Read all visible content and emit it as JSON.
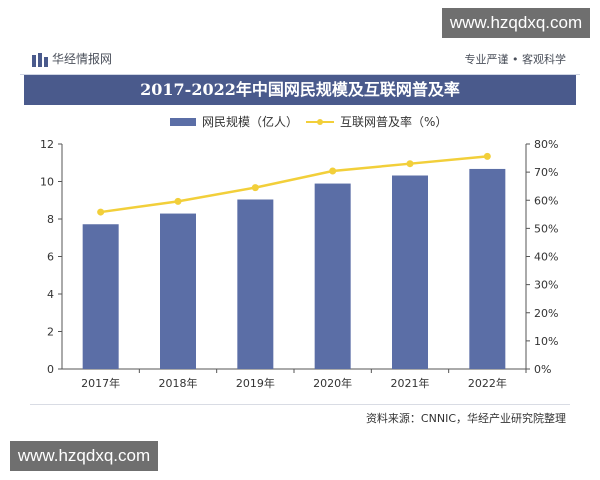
{
  "watermark": {
    "site": "www.hzqdxq.com"
  },
  "header": {
    "brand": "华经情报网",
    "slogan": "专业严谨 • 客观科学"
  },
  "chart_data": {
    "type": "bar",
    "title": "2017-2022年中国网民规模及互联网普及率",
    "categories": [
      "2017年",
      "2018年",
      "2019年",
      "2020年",
      "2021年",
      "2022年"
    ],
    "series": [
      {
        "name": "网民规模（亿人）",
        "type": "bar",
        "axis": "left",
        "color": "#5b6ea6",
        "values": [
          7.72,
          8.29,
          9.04,
          9.89,
          10.32,
          10.67
        ]
      },
      {
        "name": "互联网普及率（%）",
        "type": "line",
        "axis": "right",
        "color": "#f2cf3a",
        "values": [
          55.8,
          59.6,
          64.5,
          70.4,
          73.0,
          75.6
        ]
      }
    ],
    "yleft": {
      "ylim": [
        0,
        12
      ],
      "ticks": [
        "0",
        "2",
        "4",
        "6",
        "8",
        "10",
        "12"
      ]
    },
    "yright": {
      "ylim": [
        0,
        80
      ],
      "ticks": [
        "0%",
        "10%",
        "20%",
        "30%",
        "40%",
        "50%",
        "60%",
        "70%",
        "80%"
      ]
    },
    "legend": "top-center",
    "grid": false
  },
  "footer": {
    "source": "资料来源：CNNIC，华经产业研究院整理"
  }
}
